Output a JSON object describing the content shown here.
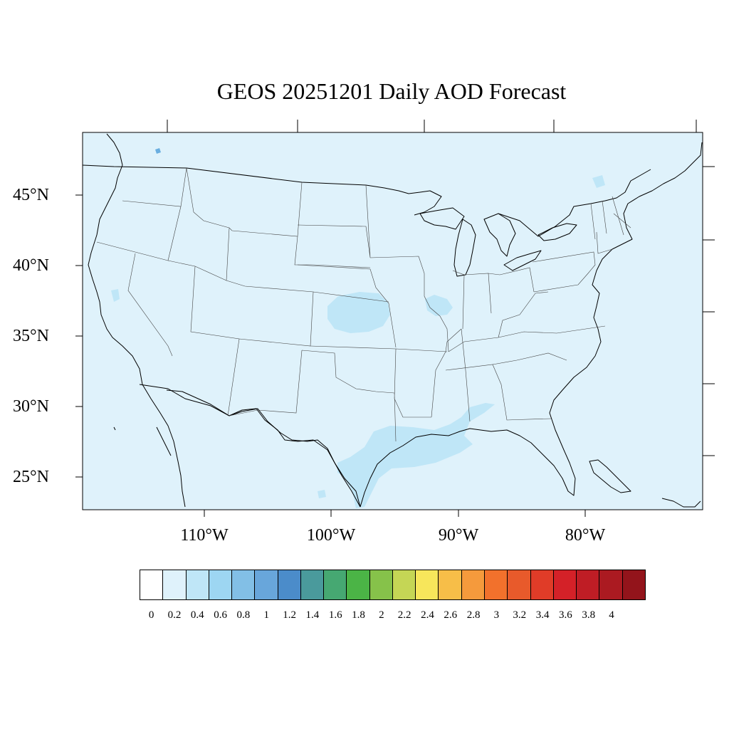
{
  "title": "GEOS 20251201 Daily AOD Forecast",
  "map": {
    "lon_range": [
      -118.9,
      -70.0
    ],
    "lat_range": [
      22.7,
      49.4
    ],
    "background_color": "#dff2fb",
    "enhanced_color": "#bfe6f7",
    "spot_color": "#6aaee0",
    "lat_ticks": [
      {
        "value": 45,
        "label": "45°N"
      },
      {
        "value": 40,
        "label": "40°N"
      },
      {
        "value": 35,
        "label": "35°N"
      },
      {
        "value": 30,
        "label": "30°N"
      },
      {
        "value": 25,
        "label": "25°N"
      }
    ],
    "lon_ticks": [
      {
        "value": -110,
        "label": "110°W"
      },
      {
        "value": -100,
        "label": "100°W"
      },
      {
        "value": -90,
        "label": "90°W"
      },
      {
        "value": -80,
        "label": "80°W"
      }
    ]
  },
  "colorbar": {
    "colors": [
      "#ffffff",
      "#dff2fb",
      "#bfe6f7",
      "#9dd6f2",
      "#82bfe6",
      "#68a6db",
      "#4b8cca",
      "#4a9a9c",
      "#46a872",
      "#4bb446",
      "#86c24a",
      "#c5d655",
      "#f7e65b",
      "#f7be48",
      "#f59a3c",
      "#f2712c",
      "#e85a2b",
      "#e03c28",
      "#d42128",
      "#bf1d25",
      "#ab1a21",
      "#93141b"
    ],
    "labels": [
      "0",
      "0.2",
      "0.4",
      "0.6",
      "0.8",
      "1",
      "1.2",
      "1.4",
      "1.6",
      "1.8",
      "2",
      "2.2",
      "2.4",
      "2.6",
      "2.8",
      "3",
      "3.2",
      "3.4",
      "3.6",
      "3.8",
      "4"
    ]
  }
}
